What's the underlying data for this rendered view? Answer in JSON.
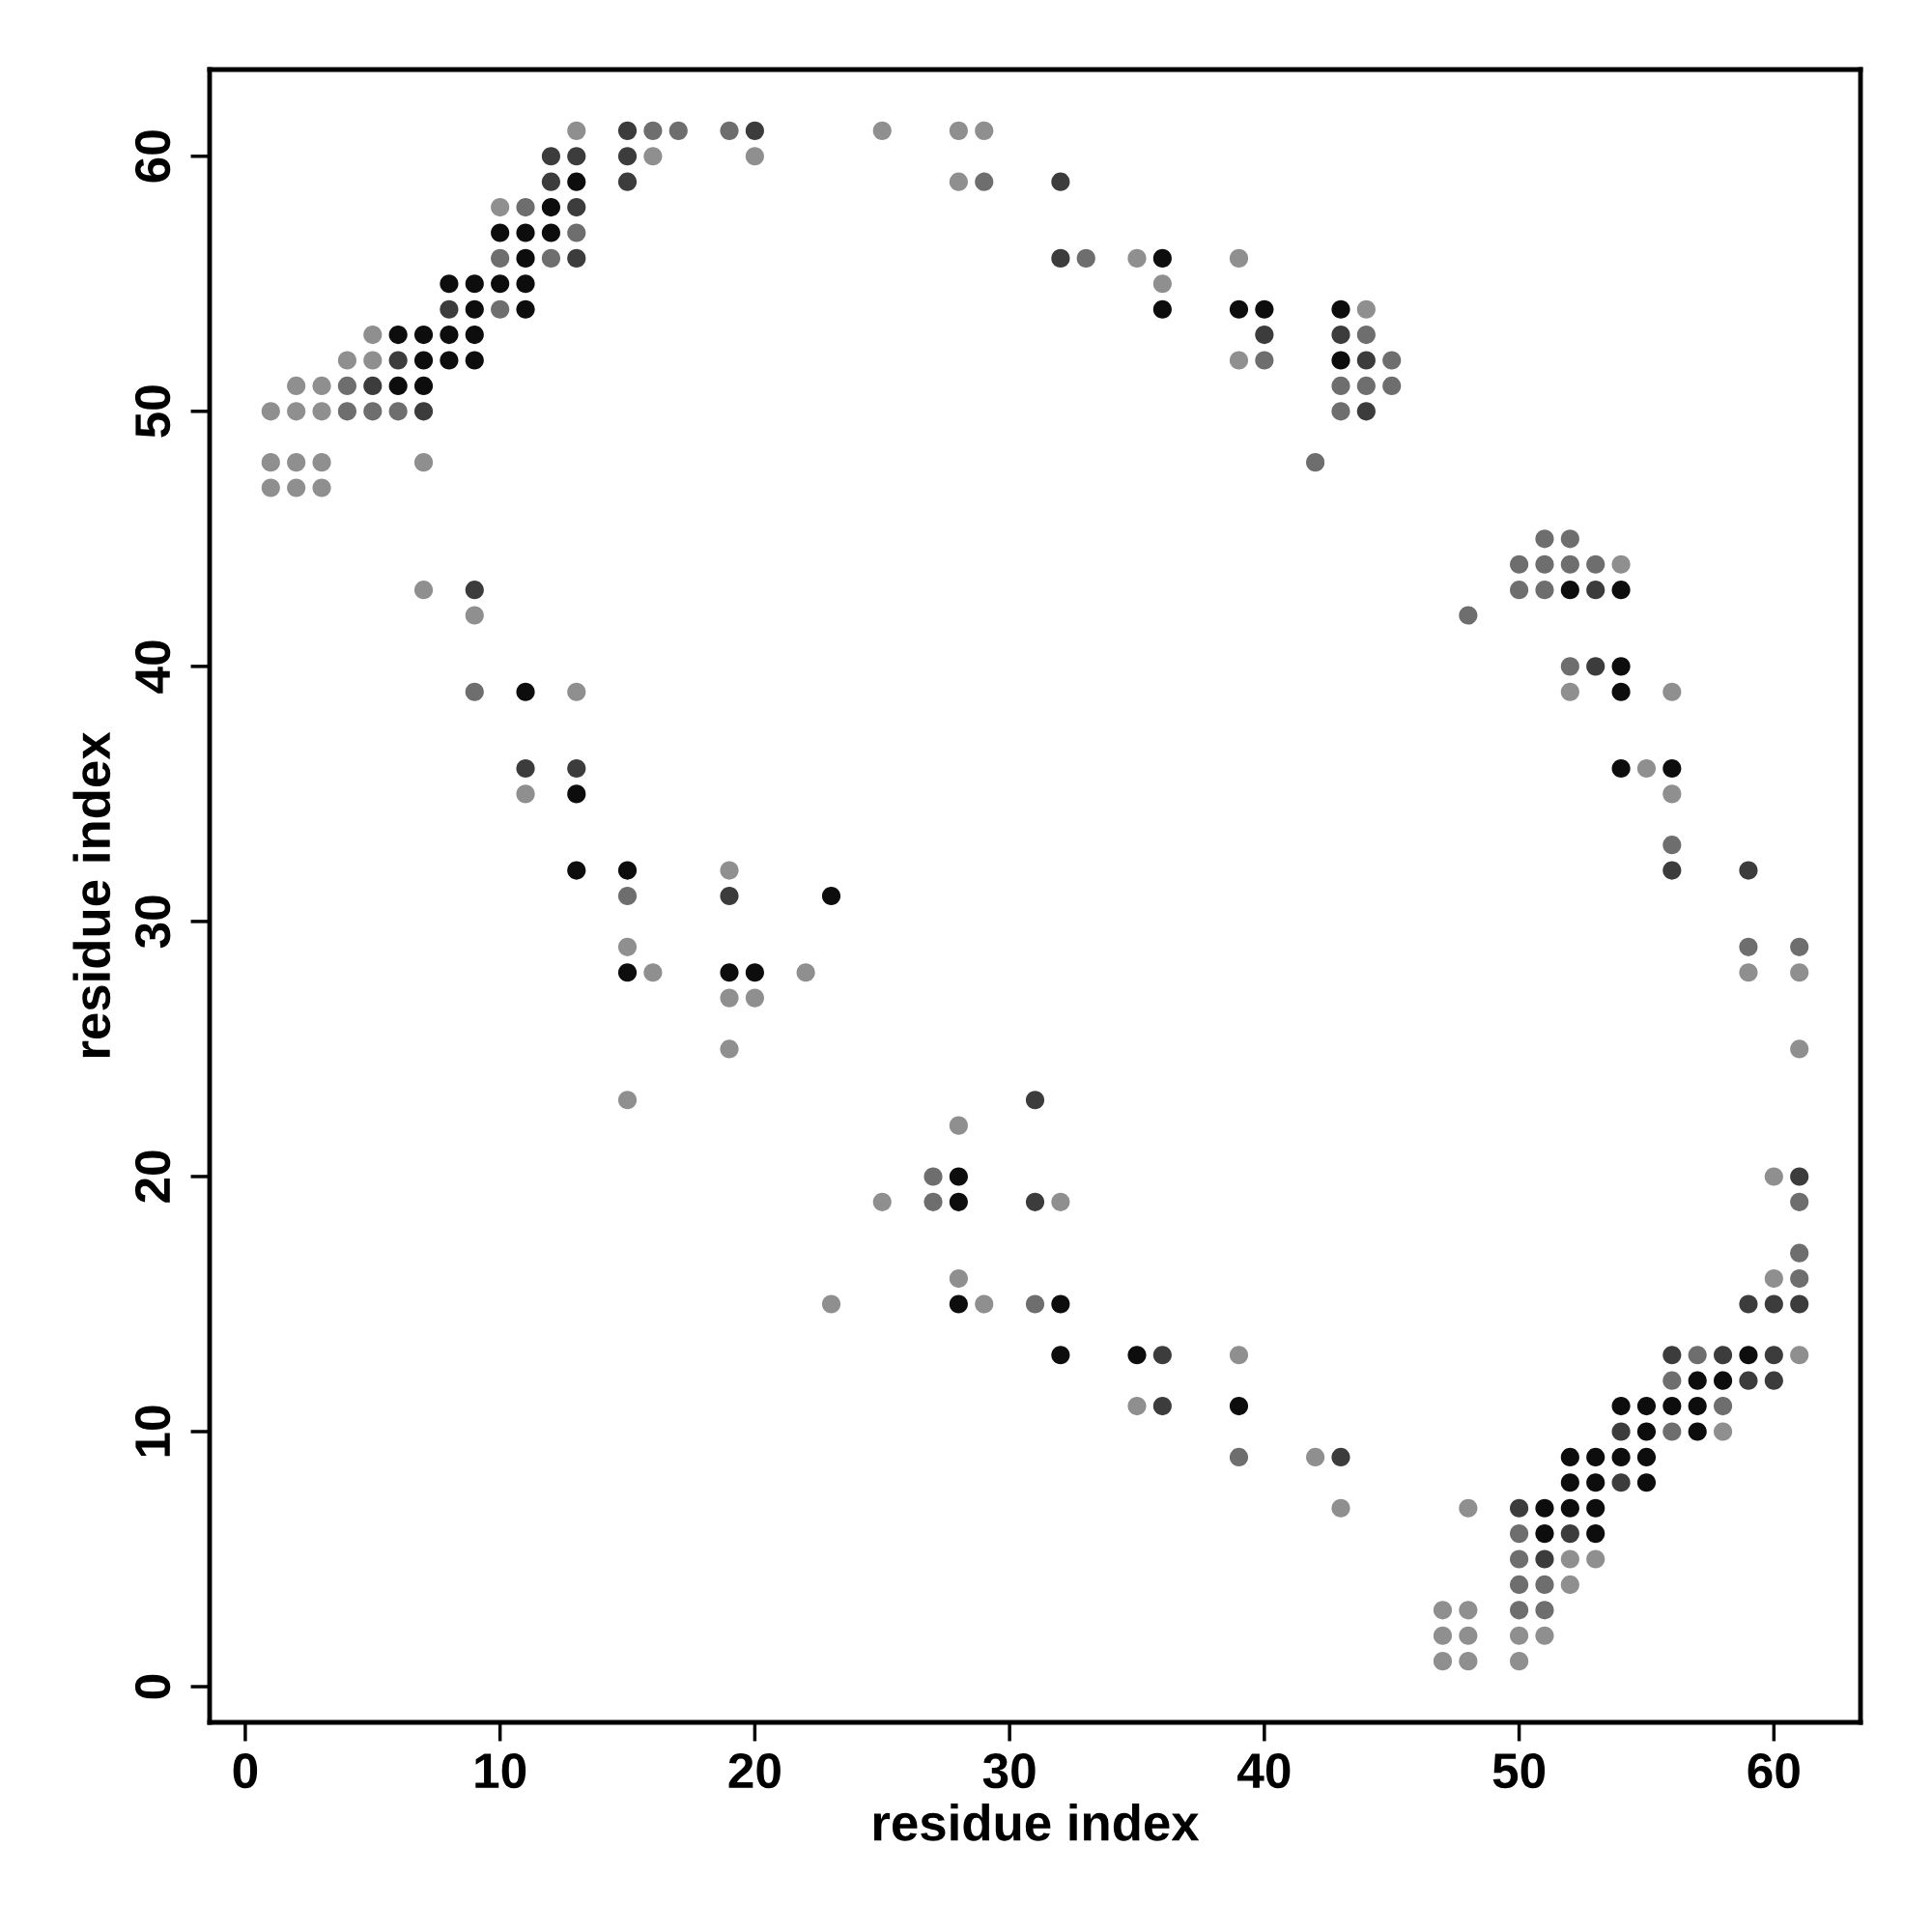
{
  "chart_data": {
    "type": "scatter",
    "xlabel": "residue index",
    "ylabel": "residue index",
    "xlim": [
      -1.4,
      63.4
    ],
    "ylim": [
      -1.4,
      63.4
    ],
    "xticks": [
      0,
      10,
      20,
      30,
      40,
      50,
      60
    ],
    "yticks": [
      0,
      10,
      20,
      30,
      40,
      50,
      60
    ],
    "grid": false,
    "marker": "circle",
    "series": [
      {
        "color": "#0d0d0d",
        "x": [
          13,
          12,
          10,
          11,
          12,
          11,
          8,
          9,
          10,
          11,
          9,
          11,
          6,
          7,
          8,
          9,
          7,
          8,
          9,
          6,
          7,
          11,
          13,
          13,
          15,
          23,
          15,
          19,
          20,
          36,
          36,
          39,
          40,
          43,
          43,
          52,
          54,
          54,
          54,
          54,
          56,
          28,
          28,
          28,
          32,
          32,
          35,
          39,
          59,
          57,
          58,
          54,
          55,
          56,
          57,
          55,
          57,
          52,
          53,
          54,
          55,
          52,
          53,
          55,
          51,
          52,
          53,
          51,
          53
        ],
        "values": [
          59,
          58,
          57,
          57,
          57,
          56,
          55,
          55,
          55,
          55,
          54,
          54,
          53,
          53,
          53,
          53,
          52,
          52,
          52,
          51,
          51,
          39,
          35,
          32,
          32,
          31,
          28,
          28,
          28,
          56,
          54,
          54,
          54,
          54,
          52,
          43,
          43,
          40,
          39,
          36,
          36,
          20,
          19,
          15,
          15,
          13,
          13,
          11,
          13,
          12,
          12,
          11,
          11,
          11,
          11,
          10,
          10,
          9,
          9,
          9,
          9,
          8,
          8,
          8,
          7,
          7,
          7,
          6,
          6
        ]
      },
      {
        "color": "#3c3c3c",
        "x": [
          15,
          20,
          12,
          13,
          15,
          12,
          15,
          13,
          13,
          8,
          6,
          5,
          7,
          9,
          11,
          13,
          19,
          32,
          32,
          40,
          43,
          44,
          44,
          53,
          53,
          56,
          59,
          31,
          31,
          36,
          36,
          43,
          61,
          59,
          60,
          61,
          56,
          58,
          60,
          59,
          60,
          54,
          54,
          50,
          52,
          51
        ],
        "values": [
          61,
          61,
          60,
          60,
          60,
          59,
          59,
          58,
          56,
          54,
          52,
          51,
          50,
          43,
          36,
          36,
          31,
          59,
          56,
          53,
          53,
          52,
          50,
          43,
          40,
          32,
          32,
          23,
          19,
          13,
          11,
          9,
          20,
          15,
          15,
          15,
          13,
          13,
          13,
          12,
          12,
          10,
          8,
          7,
          6,
          5
        ]
      },
      {
        "color": "#6e6e6e",
        "x": [
          16,
          17,
          19,
          11,
          13,
          10,
          12,
          10,
          4,
          4,
          5,
          6,
          9,
          15,
          29,
          33,
          44,
          40,
          45,
          43,
          44,
          45,
          43,
          42,
          51,
          52,
          50,
          51,
          52,
          53,
          50,
          51,
          48,
          52,
          56,
          59,
          61,
          27,
          27,
          31,
          39,
          61,
          61,
          61,
          57,
          56,
          58,
          56,
          50,
          50,
          50,
          51,
          50,
          51
        ],
        "values": [
          61,
          61,
          61,
          58,
          57,
          56,
          56,
          54,
          51,
          50,
          50,
          50,
          39,
          31,
          59,
          56,
          53,
          52,
          52,
          51,
          51,
          51,
          50,
          48,
          45,
          45,
          44,
          44,
          44,
          44,
          43,
          43,
          42,
          40,
          33,
          29,
          29,
          20,
          19,
          15,
          9,
          19,
          17,
          16,
          13,
          12,
          11,
          10,
          6,
          5,
          4,
          4,
          3,
          3
        ]
      },
      {
        "color": "#8f8f8f",
        "x": [
          13,
          25,
          28,
          29,
          16,
          20,
          28,
          10,
          5,
          4,
          5,
          2,
          3,
          1,
          2,
          3,
          1,
          2,
          3,
          7,
          1,
          2,
          3,
          7,
          9,
          13,
          11,
          19,
          15,
          16,
          22,
          19,
          20,
          19,
          15,
          35,
          39,
          36,
          44,
          39,
          54,
          52,
          56,
          55,
          56,
          59,
          61,
          28,
          25,
          32,
          28,
          23,
          29,
          39,
          35,
          42,
          43,
          61,
          60,
          60,
          61,
          58,
          48,
          52,
          53,
          52,
          47,
          48,
          47,
          48,
          50,
          51,
          47,
          48,
          50
        ],
        "values": [
          61,
          61,
          61,
          61,
          60,
          60,
          59,
          58,
          53,
          52,
          52,
          51,
          51,
          50,
          50,
          50,
          48,
          48,
          48,
          48,
          47,
          47,
          47,
          43,
          42,
          39,
          35,
          32,
          29,
          28,
          28,
          27,
          27,
          25,
          23,
          56,
          56,
          55,
          54,
          52,
          44,
          39,
          39,
          36,
          35,
          28,
          28,
          22,
          19,
          19,
          16,
          15,
          15,
          13,
          11,
          9,
          7,
          25,
          20,
          16,
          13,
          10,
          7,
          5,
          5,
          4,
          3,
          3,
          2,
          2,
          2,
          2,
          1,
          1,
          1
        ]
      }
    ]
  }
}
